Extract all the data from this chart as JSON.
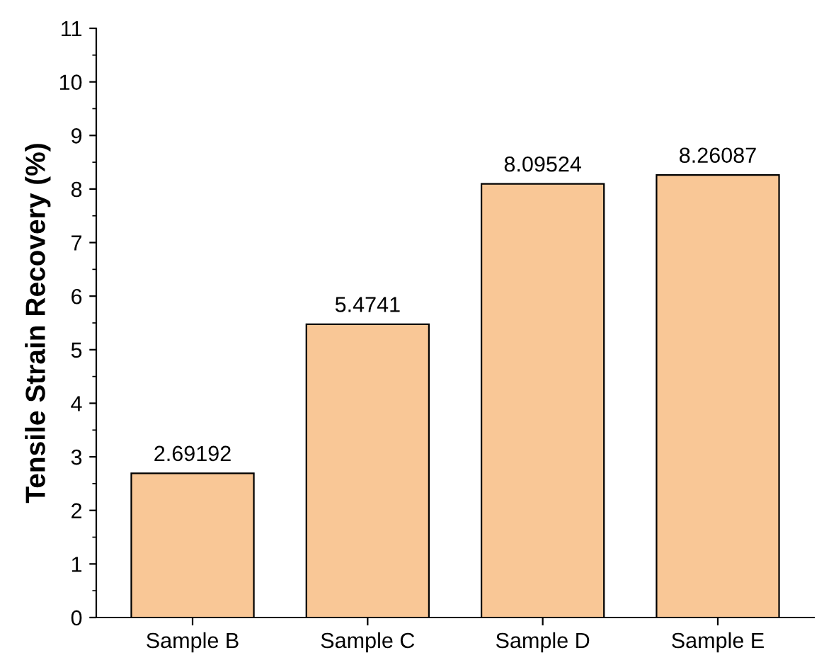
{
  "chart_data": {
    "type": "bar",
    "ylabel": "Tensile Strain Recovery (%)",
    "categories": [
      "Sample B",
      "Sample C",
      "Sample D",
      "Sample E"
    ],
    "values": [
      2.69192,
      5.4741,
      8.09524,
      8.26087
    ],
    "color": "#f9c796",
    "ylim": [
      0,
      11
    ],
    "yticks": [
      0,
      1,
      2,
      3,
      4,
      5,
      6,
      7,
      8,
      9,
      10,
      11
    ],
    "data_labels": true,
    "grid": false,
    "legend": false
  }
}
